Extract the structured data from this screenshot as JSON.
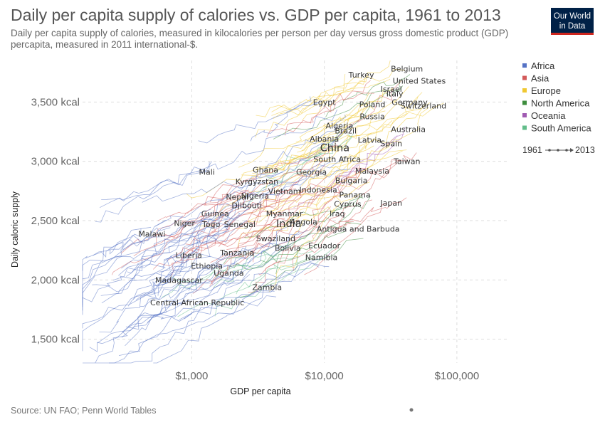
{
  "header": {
    "title": "Daily per capita supply of calories vs. GDP per capita, 1961 to 2013",
    "subtitle": "Daily per capita supply of calories, measured in kilocalories per person per day versus gross domestic product (GDP) percapita, measured in 2011 international-$.",
    "logo_line1": "Our World",
    "logo_line2": "in Data"
  },
  "footer": {
    "source": "Source: UN FAO; Penn World Tables"
  },
  "colors": {
    "Africa": "#5572c5",
    "Asia": "#d35a5a",
    "Europe": "#f0c832",
    "North America": "#3e8d3e",
    "Oceania": "#a05bb2",
    "South America": "#62bd8a",
    "logo_bg": "#002147",
    "logo_accent": "#ce261e"
  },
  "chart_data": {
    "type": "scatter",
    "title": "Daily per capita supply of calories vs. GDP per capita, 1961 to 2013",
    "xlabel": "GDP per capita",
    "ylabel": "Daily caloric supply",
    "x_scale": "log",
    "xlim": [
      150,
      250000
    ],
    "ylim": [
      1300,
      3850
    ],
    "x_ticks": [
      1000,
      10000,
      100000
    ],
    "x_tick_labels": [
      "$1,000",
      "$10,000",
      "$100,000"
    ],
    "y_ticks": [
      1500,
      2000,
      2500,
      3000,
      3500
    ],
    "y_tick_labels": [
      "1,500 kcal",
      "2,000 kcal",
      "2,500 kcal",
      "3,000 kcal",
      "3,500 kcal"
    ],
    "grid": true,
    "legend_position": "right",
    "legend": [
      "Africa",
      "Asia",
      "Europe",
      "North America",
      "Oceania",
      "South America"
    ],
    "time_range": [
      "1961",
      "2013"
    ],
    "countries": [
      {
        "name": "Turkey",
        "gdp": 19000,
        "kcal": 3730,
        "region": "Europe"
      },
      {
        "name": "Belgium",
        "gdp": 42000,
        "kcal": 3780,
        "region": "Europe"
      },
      {
        "name": "United States",
        "gdp": 52000,
        "kcal": 3680,
        "region": "North America"
      },
      {
        "name": "Italy",
        "gdp": 34000,
        "kcal": 3570,
        "region": "Europe"
      },
      {
        "name": "Israel",
        "gdp": 32000,
        "kcal": 3610,
        "region": "Asia"
      },
      {
        "name": "Egypt",
        "gdp": 10000,
        "kcal": 3500,
        "region": "Africa"
      },
      {
        "name": "Poland",
        "gdp": 23000,
        "kcal": 3480,
        "region": "Europe"
      },
      {
        "name": "Germany",
        "gdp": 44000,
        "kcal": 3500,
        "region": "Europe"
      },
      {
        "name": "Switzerland",
        "gdp": 56000,
        "kcal": 3470,
        "region": "Europe"
      },
      {
        "name": "Russia",
        "gdp": 23000,
        "kcal": 3380,
        "region": "Europe"
      },
      {
        "name": "Algeria",
        "gdp": 13000,
        "kcal": 3300,
        "region": "Africa"
      },
      {
        "name": "Brazil",
        "gdp": 14500,
        "kcal": 3260,
        "region": "South America"
      },
      {
        "name": "Australia",
        "gdp": 43000,
        "kcal": 3270,
        "region": "Oceania"
      },
      {
        "name": "Albania",
        "gdp": 10000,
        "kcal": 3190,
        "region": "Europe"
      },
      {
        "name": "Latvia",
        "gdp": 22000,
        "kcal": 3180,
        "region": "Europe"
      },
      {
        "name": "Spain",
        "gdp": 32000,
        "kcal": 3150,
        "region": "Europe"
      },
      {
        "name": "China",
        "gdp": 12000,
        "kcal": 3110,
        "region": "Asia"
      },
      {
        "name": "South Africa",
        "gdp": 12500,
        "kcal": 3020,
        "region": "Africa"
      },
      {
        "name": "Taiwan",
        "gdp": 42000,
        "kcal": 3000,
        "region": "Asia"
      },
      {
        "name": "Mali",
        "gdp": 1300,
        "kcal": 2910,
        "region": "Africa"
      },
      {
        "name": "Ghana",
        "gdp": 3600,
        "kcal": 2930,
        "region": "Africa"
      },
      {
        "name": "Georgia",
        "gdp": 8000,
        "kcal": 2910,
        "region": "Asia"
      },
      {
        "name": "Malaysia",
        "gdp": 23000,
        "kcal": 2920,
        "region": "Asia"
      },
      {
        "name": "Kyrgyzstan",
        "gdp": 3100,
        "kcal": 2830,
        "region": "Asia"
      },
      {
        "name": "Bulgaria",
        "gdp": 16000,
        "kcal": 2840,
        "region": "Europe"
      },
      {
        "name": "Vietnam",
        "gdp": 5000,
        "kcal": 2750,
        "region": "Asia"
      },
      {
        "name": "Indonesia",
        "gdp": 9000,
        "kcal": 2760,
        "region": "Asia"
      },
      {
        "name": "Nepal",
        "gdp": 2200,
        "kcal": 2700,
        "region": "Asia"
      },
      {
        "name": "Nigeria",
        "gdp": 3000,
        "kcal": 2710,
        "region": "Africa"
      },
      {
        "name": "Panama",
        "gdp": 17000,
        "kcal": 2720,
        "region": "North America"
      },
      {
        "name": "Djibouti",
        "gdp": 2600,
        "kcal": 2630,
        "region": "Africa"
      },
      {
        "name": "Cyprus",
        "gdp": 15000,
        "kcal": 2640,
        "region": "Europe"
      },
      {
        "name": "Japan",
        "gdp": 32000,
        "kcal": 2650,
        "region": "Asia"
      },
      {
        "name": "Guinea",
        "gdp": 1500,
        "kcal": 2560,
        "region": "Africa"
      },
      {
        "name": "Myanmar",
        "gdp": 5000,
        "kcal": 2560,
        "region": "Asia"
      },
      {
        "name": "Iraq",
        "gdp": 12500,
        "kcal": 2560,
        "region": "Asia"
      },
      {
        "name": "Niger",
        "gdp": 880,
        "kcal": 2480,
        "region": "Africa"
      },
      {
        "name": "Togo",
        "gdp": 1400,
        "kcal": 2470,
        "region": "Africa"
      },
      {
        "name": "Senegal",
        "gdp": 2300,
        "kcal": 2470,
        "region": "Africa"
      },
      {
        "name": "India",
        "gdp": 5400,
        "kcal": 2470,
        "region": "Asia"
      },
      {
        "name": "Angola",
        "gdp": 7000,
        "kcal": 2490,
        "region": "Africa"
      },
      {
        "name": "Antigua and Barbuda",
        "gdp": 18000,
        "kcal": 2430,
        "region": "North America"
      },
      {
        "name": "Malawi",
        "gdp": 500,
        "kcal": 2390,
        "region": "Africa"
      },
      {
        "name": "Swaziland",
        "gdp": 4300,
        "kcal": 2350,
        "region": "Africa"
      },
      {
        "name": "Ecuador",
        "gdp": 10000,
        "kcal": 2290,
        "region": "South America"
      },
      {
        "name": "Bolivia",
        "gdp": 5300,
        "kcal": 2270,
        "region": "South America"
      },
      {
        "name": "Liberia",
        "gdp": 950,
        "kcal": 2210,
        "region": "Africa"
      },
      {
        "name": "Tanzania",
        "gdp": 2200,
        "kcal": 2230,
        "region": "Africa"
      },
      {
        "name": "Namibia",
        "gdp": 9500,
        "kcal": 2190,
        "region": "Africa"
      },
      {
        "name": "Ethiopia",
        "gdp": 1300,
        "kcal": 2120,
        "region": "Africa"
      },
      {
        "name": "Uganda",
        "gdp": 1900,
        "kcal": 2060,
        "region": "Africa"
      },
      {
        "name": "Madagascar",
        "gdp": 800,
        "kcal": 2000,
        "region": "Africa"
      },
      {
        "name": "Zambia",
        "gdp": 3700,
        "kcal": 1940,
        "region": "Africa"
      },
      {
        "name": "Central African Republic",
        "gdp": 1100,
        "kcal": 1810,
        "region": "Africa"
      }
    ]
  }
}
